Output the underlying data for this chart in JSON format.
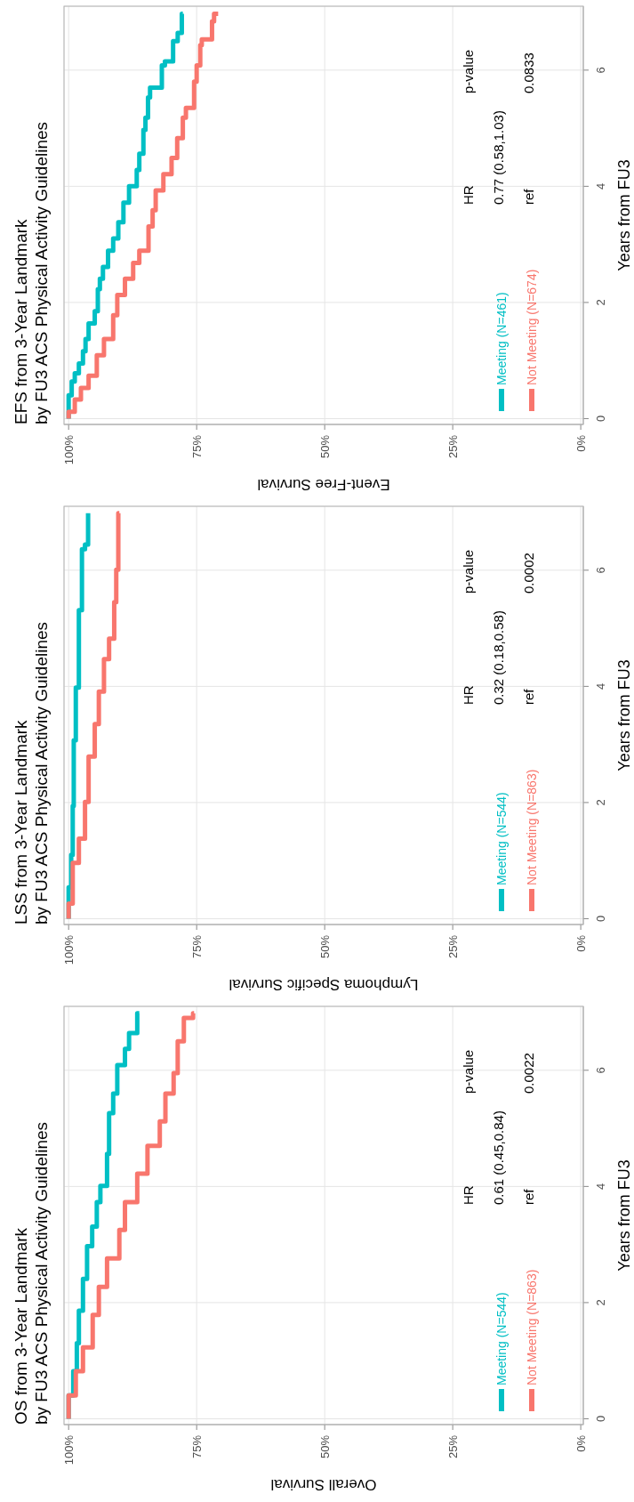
{
  "chart_data": [
    {
      "type": "step",
      "title": "OS from 3-Year Landmark\nby FU3 ACS Physical Activity Guidelines",
      "xlabel": "Overall Survival",
      "ylabel": "Years from FU3",
      "xlim": [
        100.9,
        -0.5
      ],
      "xticks": [
        {
          "value": 100,
          "label": "100%"
        },
        {
          "value": 75,
          "label": "75%"
        },
        {
          "value": 50,
          "label": "50%"
        },
        {
          "value": 25,
          "label": "25%"
        },
        {
          "value": 0,
          "label": "0%"
        }
      ],
      "ylim": [
        -0.1,
        7.1
      ],
      "yticks": [
        0,
        2,
        4,
        6
      ],
      "grid": true,
      "legend": "bottom right",
      "line_style": "solid",
      "series": [
        {
          "name": "Meeting (N=544)",
          "color": "#00bfc4",
          "x": [
            100,
            99.1,
            98.4,
            98.0,
            97.2,
            96.4,
            95.4,
            94.5,
            93.8,
            92.5,
            92.1,
            91.3,
            90.5,
            89.0,
            88.2,
            86.6,
            86.2
          ],
          "values": [
            0,
            0.4,
            0.82,
            1.3,
            1.86,
            2.41,
            2.97,
            3.31,
            3.73,
            4.01,
            4.56,
            5.26,
            5.6,
            6.09,
            6.37,
            6.64,
            6.98
          ]
        },
        {
          "name": "Not Meeting (N=863)",
          "color": "#f8766d",
          "x": [
            100,
            98.6,
            97.2,
            95.3,
            94.1,
            92.5,
            90.1,
            89.0,
            86.6,
            84.6,
            82.2,
            81.1,
            79.5,
            78.7,
            77.5,
            75.7,
            75.5
          ],
          "values": [
            0,
            0.4,
            0.82,
            1.23,
            1.79,
            2.27,
            2.76,
            3.25,
            3.73,
            4.22,
            4.7,
            5.12,
            5.6,
            5.95,
            6.5,
            6.9,
            6.98
          ]
        }
      ],
      "annotations": [
        "HR",
        "p-value",
        "0.61 (0.45,0.84)",
        "ref",
        "0.0022"
      ]
    },
    {
      "type": "step",
      "title": "LSS from 3-Year Landmark\nby FU3 ACS Physical Activity Guidelines",
      "xlabel": "Lymphoma Specific Survival",
      "ylabel": "Years from FU3",
      "xlim": [
        100.9,
        -0.5
      ],
      "xticks": [
        {
          "value": 100,
          "label": "100%"
        },
        {
          "value": 75,
          "label": "75%"
        },
        {
          "value": 50,
          "label": "50%"
        },
        {
          "value": 25,
          "label": "25%"
        },
        {
          "value": 0,
          "label": "0%"
        }
      ],
      "ylim": [
        -0.1,
        7.1
      ],
      "yticks": [
        0,
        2,
        4,
        6
      ],
      "grid": true,
      "legend": "bottom right",
      "line_style": "solid",
      "series": [
        {
          "name": "Meeting (N=544)",
          "color": "#00bfc4",
          "x": [
            100,
            99.5,
            99.2,
            99.0,
            98.6,
            98.0,
            97.4,
            96.8,
            96.2,
            96.2
          ],
          "values": [
            0,
            0.54,
            1.1,
            1.94,
            3.07,
            3.98,
            5.31,
            6.36,
            6.44,
            6.98
          ]
        },
        {
          "name": "Not Meeting (N=863)",
          "color": "#f8766d",
          "x": [
            100,
            99.2,
            98.0,
            96.8,
            96.1,
            94.9,
            94.1,
            93.1,
            92.1,
            91.1,
            90.7,
            90.3,
            90.1
          ],
          "values": [
            0,
            0.26,
            0.96,
            1.38,
            2.01,
            2.79,
            3.35,
            3.91,
            4.47,
            4.82,
            5.45,
            6.01,
            6.98
          ]
        }
      ],
      "annotations": [
        "HR",
        "p-value",
        "0.32 (0.18,0.58)",
        "ref",
        "0.0002"
      ]
    },
    {
      "type": "step",
      "title": "EFS from 3-Year Landmark\nby FU3 ACS Physical Activity Guidelines",
      "xlabel": "Event-Free Survival",
      "ylabel": "Years from FU3",
      "xlim": [
        100.9,
        -0.5
      ],
      "xticks": [
        {
          "value": 100,
          "label": "100%"
        },
        {
          "value": 75,
          "label": "75%"
        },
        {
          "value": 50,
          "label": "50%"
        },
        {
          "value": 25,
          "label": "25%"
        },
        {
          "value": 0,
          "label": "0%"
        }
      ],
      "ylim": [
        -0.1,
        7.1
      ],
      "yticks": [
        0,
        2,
        4,
        6
      ],
      "grid": true,
      "legend": "bottom right",
      "line_style": "solid",
      "series": [
        {
          "name": "Meeting (N=461)",
          "color": "#00bfc4",
          "x": [
            100,
            99.4,
            98.8,
            98.0,
            97.2,
            96.7,
            96.1,
            94.9,
            94.3,
            93.9,
            93.3,
            92.3,
            91.3,
            90.3,
            89.3,
            88.2,
            86.7,
            86.2,
            85.4,
            85.0,
            84.5,
            84.1,
            81.8,
            81.2,
            79.6,
            78.7,
            77.9,
            77.7
          ],
          "values": [
            0,
            0.4,
            0.64,
            0.78,
            0.95,
            1.16,
            1.37,
            1.64,
            1.85,
            2.23,
            2.41,
            2.61,
            2.89,
            3.1,
            3.38,
            3.72,
            4.0,
            4.28,
            4.56,
            4.97,
            5.18,
            5.53,
            5.7,
            6.08,
            6.15,
            6.5,
            6.64,
            6.97
          ]
        },
        {
          "name": "Not Meeting (N=674)",
          "color": "#f8766d",
          "x": [
            100,
            98.8,
            97.6,
            96.1,
            94.5,
            93.1,
            91.3,
            90.5,
            89.0,
            87.4,
            86.2,
            84.4,
            83.6,
            83.0,
            81.5,
            79.9,
            78.8,
            77.7,
            77.1,
            75.5,
            75.0,
            74.3,
            74.0,
            72.0,
            71.6,
            70.8
          ],
          "values": [
            0,
            0.12,
            0.33,
            0.53,
            0.74,
            1.09,
            1.37,
            1.78,
            2.13,
            2.41,
            2.68,
            2.89,
            3.31,
            3.59,
            3.93,
            4.21,
            4.49,
            4.83,
            5.18,
            5.35,
            5.8,
            6.08,
            6.43,
            6.53,
            6.84,
            6.97
          ]
        }
      ],
      "annotations": [
        "HR",
        "p-value",
        "0.77 (0.58,1.03)",
        "ref",
        "0.0833"
      ]
    }
  ]
}
